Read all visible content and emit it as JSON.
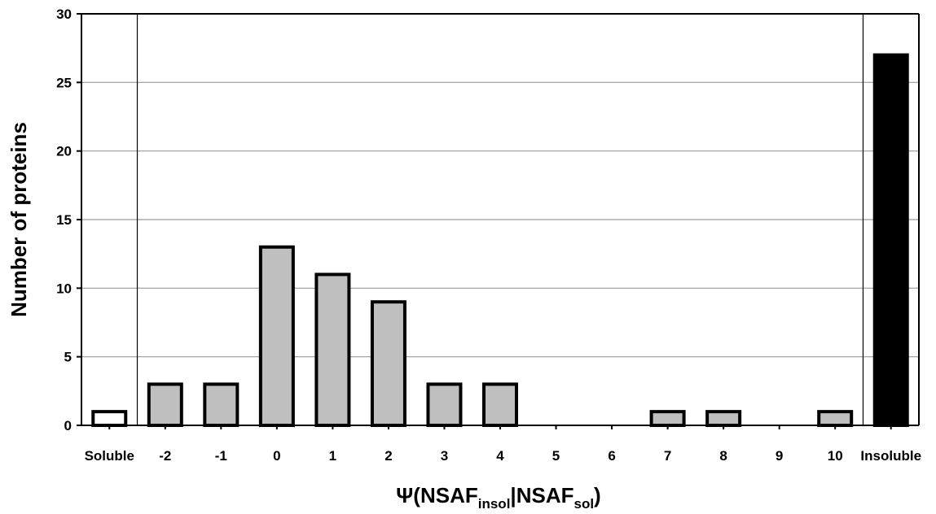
{
  "chart_data": {
    "type": "bar",
    "ylabel": "Number of proteins",
    "xlabel": {
      "prefix": "Ψ(NSAF",
      "sub1": "insol",
      "mid": "|NSAF",
      "sub2": "sol",
      "suffix": ")"
    },
    "ylim": [
      0,
      30
    ],
    "yticks": [
      0,
      5,
      10,
      15,
      20,
      25,
      30
    ],
    "grid": true,
    "categories": [
      "Soluble",
      "-2",
      "-1",
      "0",
      "1",
      "2",
      "3",
      "4",
      "5",
      "6",
      "7",
      "8",
      "9",
      "10",
      "Insoluble"
    ],
    "values": [
      1,
      3,
      3,
      13,
      11,
      9,
      3,
      3,
      0,
      0,
      1,
      1,
      0,
      1,
      27
    ],
    "bar_colors": [
      "#ffffff",
      "#bfbfbf",
      "#bfbfbf",
      "#bfbfbf",
      "#bfbfbf",
      "#bfbfbf",
      "#bfbfbf",
      "#bfbfbf",
      "#bfbfbf",
      "#bfbfbf",
      "#bfbfbf",
      "#bfbfbf",
      "#bfbfbf",
      "#bfbfbf",
      "#000000"
    ],
    "colors": {
      "axis": "#000000",
      "grid": "#9a9a9a",
      "bar_outline": "#000000"
    }
  }
}
